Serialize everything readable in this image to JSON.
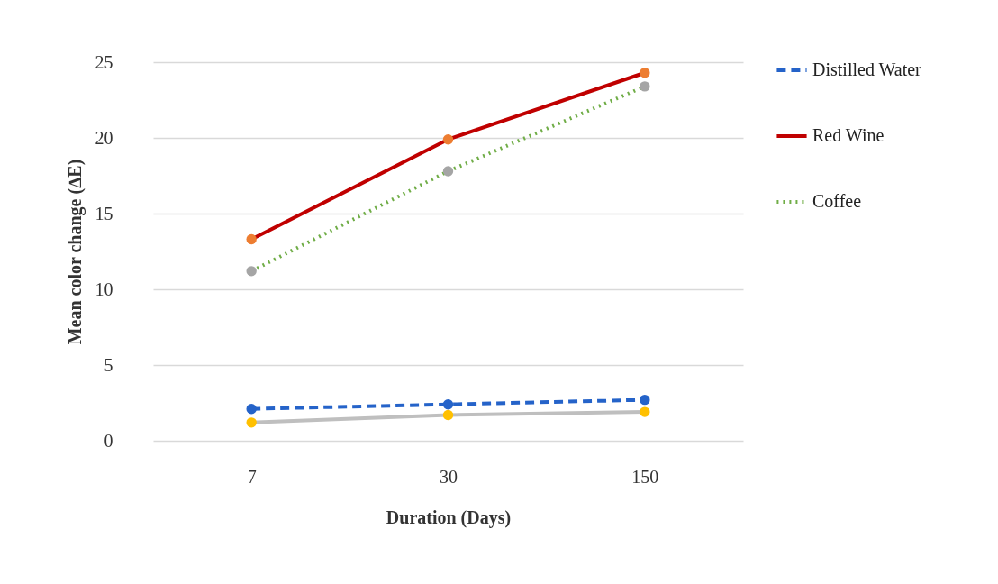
{
  "chart_data": {
    "type": "line",
    "xlabel": "Duration (Days)",
    "ylabel": "Mean color change (∆E)",
    "categories": [
      "7",
      "30",
      "150"
    ],
    "series": [
      {
        "name": "Distilled Water",
        "color": "#2563c9",
        "line_style": "dashed",
        "colors": [
          "#2563c9",
          "#2563c9",
          "#2563c9"
        ],
        "values": [
          2.1,
          2.4,
          2.7
        ]
      },
      {
        "name": "Red Wine",
        "color": "#c00000",
        "line_style": "solid",
        "colors": [
          "#ed7d31",
          "#ed7d31",
          "#ed7d31"
        ],
        "values": [
          13.3,
          19.9,
          24.3
        ]
      },
      {
        "name": "Coffee",
        "color": "#70ad47",
        "line_style": "dotted",
        "colors": [
          "#a5a5a5",
          "#a5a5a5",
          "#a5a5a5"
        ],
        "values": [
          11.2,
          17.8,
          23.4
        ]
      },
      {
        "color": "#bfbfbf",
        "line_style": "solid",
        "colors": [
          "#ffc000",
          "#ffc000",
          "#ffc000"
        ],
        "values": [
          1.2,
          1.7,
          1.9
        ]
      }
    ],
    "ylim": [
      0,
      25
    ],
    "yticks": [
      0,
      5,
      10,
      15,
      20,
      25
    ],
    "grid": "y",
    "legend": "right",
    "marker": "circle"
  }
}
